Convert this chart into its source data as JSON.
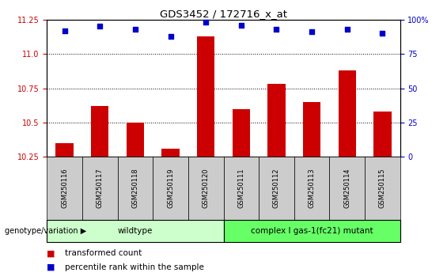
{
  "title": "GDS3452 / 172716_x_at",
  "samples": [
    "GSM250116",
    "GSM250117",
    "GSM250118",
    "GSM250119",
    "GSM250120",
    "GSM250111",
    "GSM250112",
    "GSM250113",
    "GSM250114",
    "GSM250115"
  ],
  "transformed_count": [
    10.35,
    10.62,
    10.5,
    10.31,
    11.13,
    10.6,
    10.78,
    10.65,
    10.88,
    10.58
  ],
  "percentile_rank": [
    92,
    95,
    93,
    88,
    98,
    96,
    93,
    91,
    93,
    90
  ],
  "ylim_left": [
    10.25,
    11.25
  ],
  "ylim_right": [
    0,
    100
  ],
  "yticks_left": [
    10.25,
    10.5,
    10.75,
    11.0,
    11.25
  ],
  "yticks_right": [
    0,
    25,
    50,
    75,
    100
  ],
  "ytick_labels_right": [
    "0",
    "25",
    "50",
    "75",
    "100%"
  ],
  "bar_color": "#cc0000",
  "dot_color": "#0000cc",
  "n_wildtype": 5,
  "n_mutant": 5,
  "wildtype_label": "wildtype",
  "mutant_label": "complex I gas-1(fc21) mutant",
  "wildtype_color": "#ccffcc",
  "mutant_color": "#66ff66",
  "genotype_label": "genotype/variation",
  "legend_bar_label": "transformed count",
  "legend_dot_label": "percentile rank within the sample",
  "tick_label_color_left": "#cc0000",
  "tick_label_color_right": "#0000cc",
  "background_color": "#ffffff",
  "sample_box_color": "#cccccc",
  "bar_width": 0.5
}
